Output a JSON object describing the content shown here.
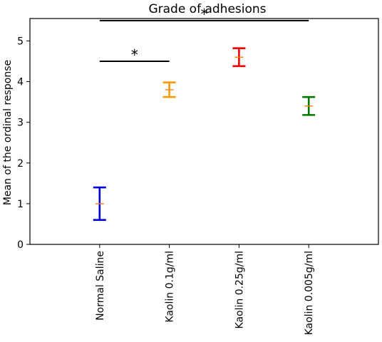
{
  "chart_data": {
    "type": "errorbar",
    "title": "Grade of adhesions",
    "xlabel": "",
    "ylabel": "Mean of the ordinal response",
    "categories": [
      "Normal Saline",
      "Kaolin 0.1g/ml",
      "Kaolin 0.25g/ml",
      "Kaolin 0.005g/ml"
    ],
    "xlim": [
      0,
      5
    ],
    "ylim": [
      0,
      5.55
    ],
    "yticks": [
      0,
      1,
      2,
      3,
      4,
      5
    ],
    "grid": false,
    "points": [
      {
        "category": "Normal Saline",
        "mean": 1.0,
        "lower": 0.6,
        "upper": 1.4,
        "color": "#0000dd"
      },
      {
        "category": "Kaolin 0.1g/ml",
        "mean": 3.8,
        "lower": 3.62,
        "upper": 3.98,
        "color": "#ff9900"
      },
      {
        "category": "Kaolin 0.25g/ml",
        "mean": 4.6,
        "lower": 4.38,
        "upper": 4.82,
        "color": "#ee0000"
      },
      {
        "category": "Kaolin 0.005g/ml",
        "mean": 3.4,
        "lower": 3.18,
        "upper": 3.62,
        "color": "#007700"
      }
    ],
    "mean_marker_color": "#ff7f0e",
    "annotations": [
      {
        "label": "*",
        "from": "Normal Saline",
        "to": "Kaolin 0.1g/ml",
        "y": 4.5
      },
      {
        "label": "*",
        "from": "Normal Saline",
        "to": "Kaolin 0.005g/ml",
        "y": 5.5
      }
    ]
  }
}
